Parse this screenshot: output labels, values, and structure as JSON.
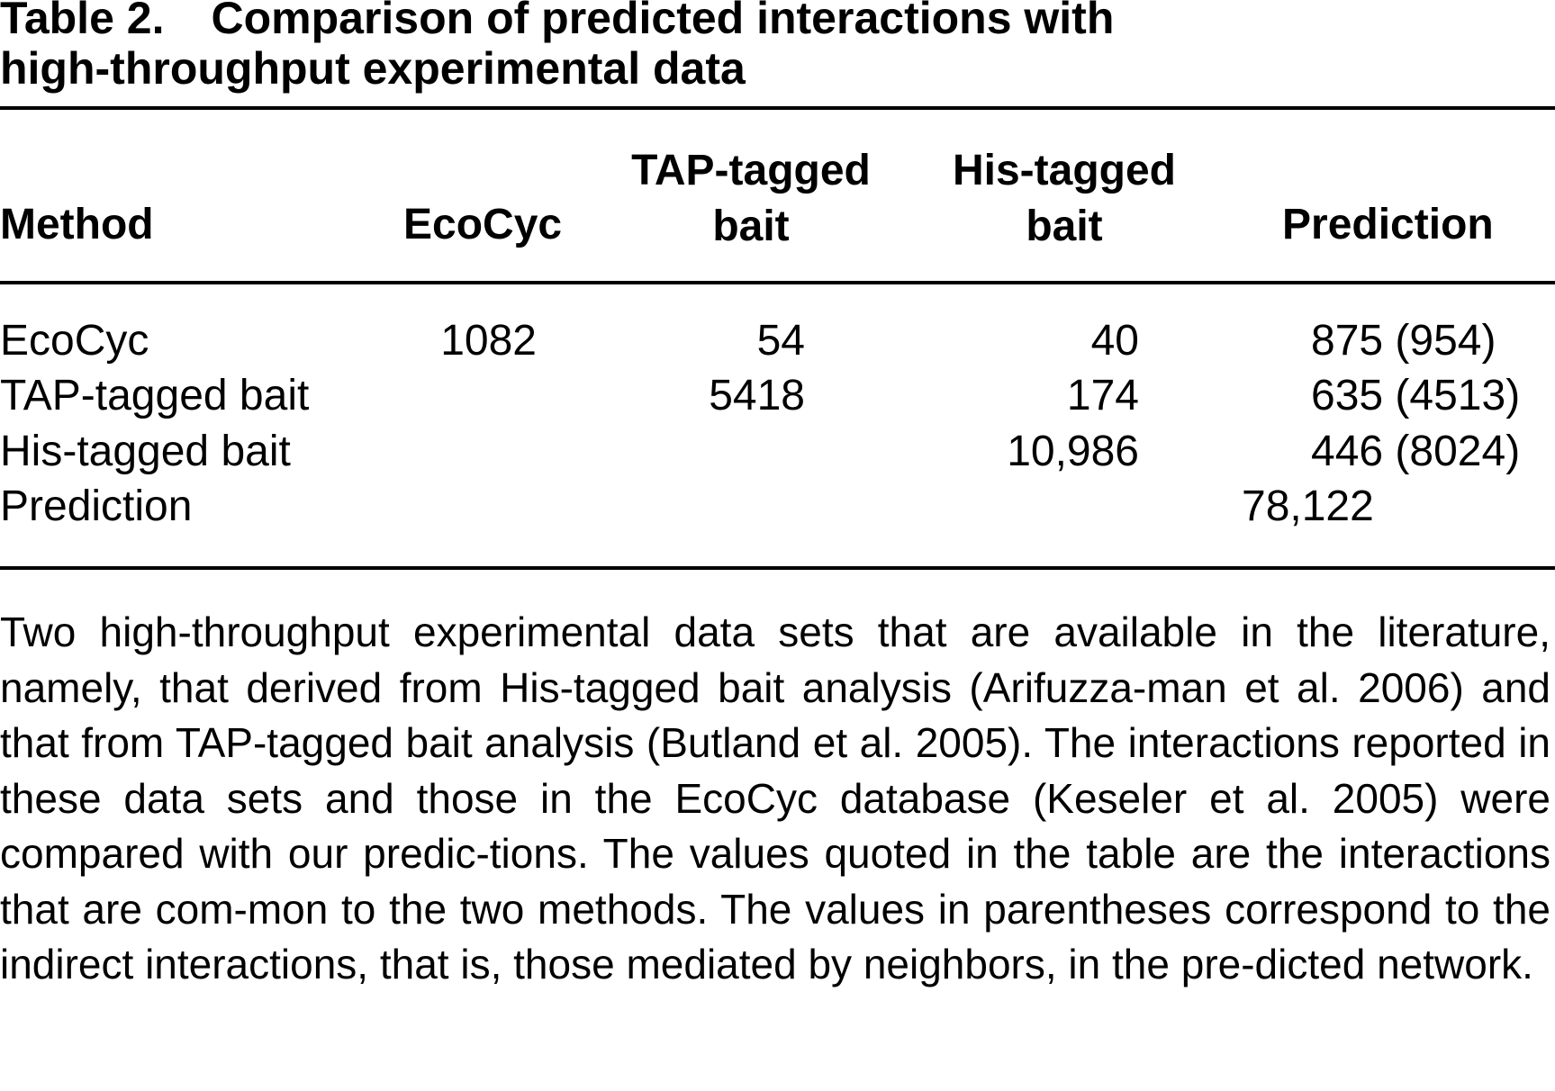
{
  "table": {
    "label": "Table 2.",
    "title_line1": "Comparison of predicted interactions with",
    "title_line2": "high-throughput experimental data",
    "headers": {
      "method": "Method",
      "ecocyc": "EcoCyc",
      "tap_line1": "TAP-tagged",
      "tap_line2": "bait",
      "his_line1": "His-tagged",
      "his_line2": "bait",
      "prediction": "Prediction"
    },
    "rows": [
      {
        "method": "EcoCyc",
        "ecocyc": "1082",
        "tap": "54",
        "his": "40",
        "prediction": "875 (954)"
      },
      {
        "method": "TAP-tagged bait",
        "ecocyc": "",
        "tap": "5418",
        "his": "174",
        "prediction": "635 (4513)"
      },
      {
        "method": "His-tagged bait",
        "ecocyc": "",
        "tap": "",
        "his": "10,986",
        "prediction": "446 (8024)"
      },
      {
        "method": "Prediction",
        "ecocyc": "",
        "tap": "",
        "his": "",
        "prediction": "78,122"
      }
    ],
    "footnote": "Two high-throughput experimental data sets that are available in the literature, namely, that derived from His-tagged bait analysis (Arifuzza-man et al. 2006) and that from TAP-tagged bait analysis (Butland et al. 2005). The interactions reported in these data sets and those in the EcoCyc database (Keseler et al. 2005) were compared with our predic-tions. The values quoted in the table are the interactions that are com-mon to the two methods. The values in parentheses correspond to the indirect interactions, that is, those mediated by neighbors, in the pre-dicted network."
  }
}
